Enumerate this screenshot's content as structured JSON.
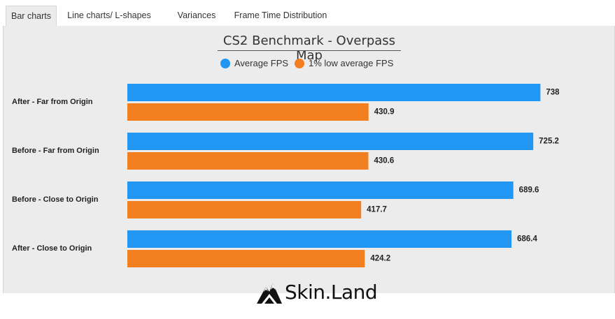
{
  "tabs": [
    {
      "label": "Bar charts",
      "active": true
    },
    {
      "label": "Line charts/ L-shapes",
      "active": false
    },
    {
      "label": "Variances",
      "active": false
    },
    {
      "label": "Frame Time Distribution",
      "active": false
    }
  ],
  "logo": {
    "text": "Skin.Land"
  },
  "chart_data": {
    "type": "bar",
    "orientation": "horizontal",
    "title": "CS2 Benchmark - Overpass Map",
    "categories": [
      "After - Far from Origin",
      "Before - Far from Origin",
      "Before - Close to Origin",
      "After - Close to Origin"
    ],
    "series": [
      {
        "name": "Average FPS",
        "color": "#2196f3",
        "values": [
          738,
          725.2,
          689.6,
          686.4
        ],
        "labels": [
          "738",
          "725.2",
          "689.6",
          "686.4"
        ]
      },
      {
        "name": "1% low average FPS",
        "color": "#f28020",
        "values": [
          430.9,
          430.6,
          417.7,
          424.2
        ],
        "labels": [
          "430.9",
          "430.6",
          "417.7",
          "424.2"
        ]
      }
    ],
    "xlim": [
      0,
      750
    ],
    "legend": "top-center",
    "grid": false,
    "xlabel": "",
    "ylabel": ""
  }
}
